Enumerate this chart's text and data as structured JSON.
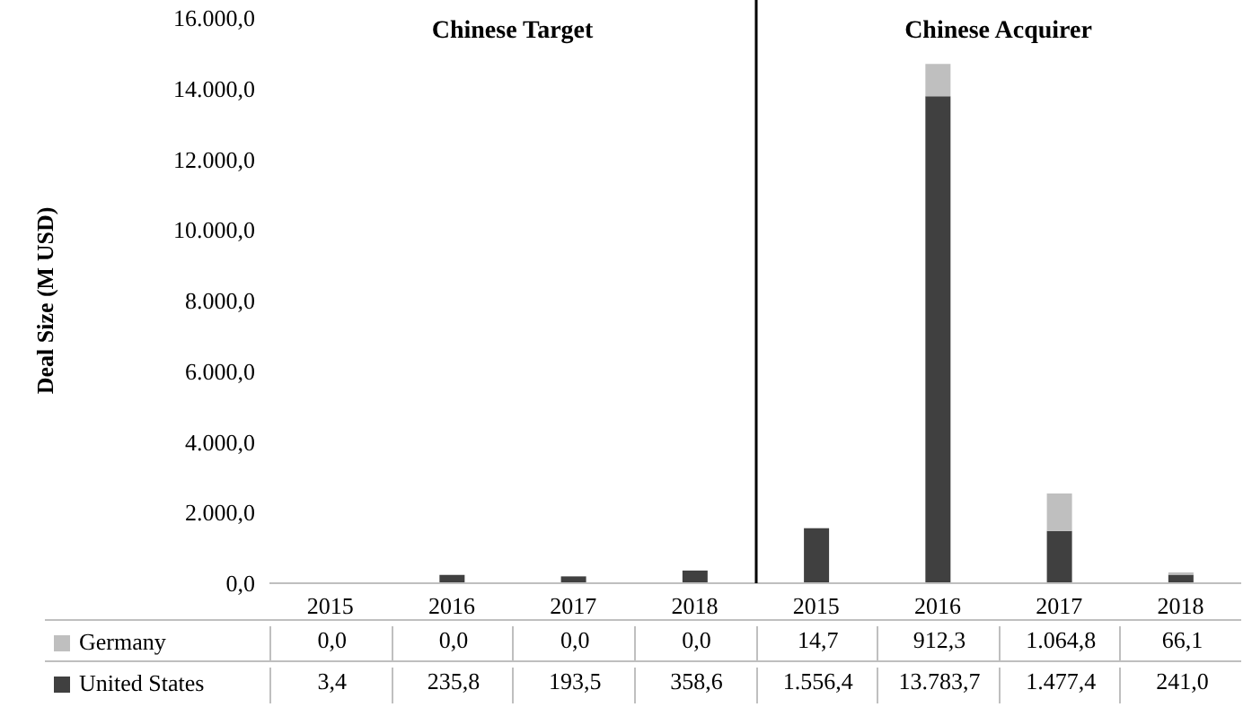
{
  "chart_data": {
    "type": "bar",
    "stacked": true,
    "ylabel": "Deal Size (M USD)",
    "annotations": [
      "Chinese Target",
      "Chinese Acquirer"
    ],
    "categories": [
      "2015",
      "2016",
      "2017",
      "2018",
      "2015",
      "2016",
      "2017",
      "2018"
    ],
    "series": [
      {
        "name": "United States",
        "color": "#404040",
        "values": [
          3.4,
          235.8,
          193.5,
          358.6,
          1556.4,
          13783.7,
          1477.4,
          241.0
        ],
        "value_labels": [
          "3,4",
          "235,8",
          "193,5",
          "358,6",
          "1.556,4",
          "13.783,7",
          "1.477,4",
          "241,0"
        ]
      },
      {
        "name": "Germany",
        "color": "#bfbfbf",
        "values": [
          0.0,
          0.0,
          0.0,
          0.0,
          14.7,
          912.3,
          1064.8,
          66.1
        ],
        "value_labels": [
          "0,0",
          "0,0",
          "0,0",
          "0,0",
          "14,7",
          "912,3",
          "1.064,8",
          "66,1"
        ]
      }
    ],
    "ylim": [
      0,
      16000
    ],
    "yticks": [
      {
        "value": 0,
        "label": "0,0"
      },
      {
        "value": 2000,
        "label": "2.000,0"
      },
      {
        "value": 4000,
        "label": "4.000,0"
      },
      {
        "value": 6000,
        "label": "6.000,0"
      },
      {
        "value": 8000,
        "label": "8.000,0"
      },
      {
        "value": 10000,
        "label": "10.000,0"
      },
      {
        "value": 12000,
        "label": "12.000,0"
      },
      {
        "value": 14000,
        "label": "14.000,0"
      },
      {
        "value": 16000,
        "label": "16.000,0"
      }
    ],
    "grid": false,
    "legend": "bottom",
    "data_labels": true
  }
}
